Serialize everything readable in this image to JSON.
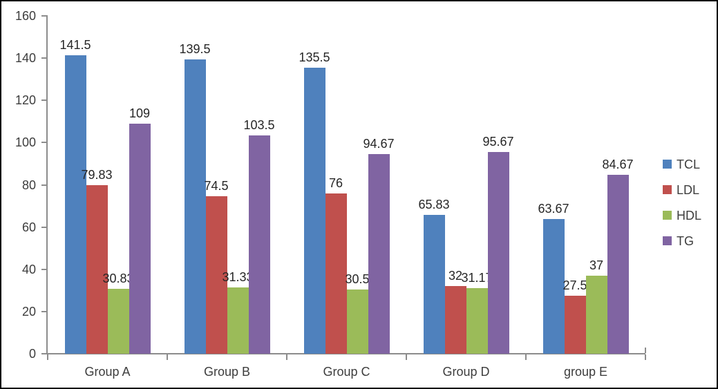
{
  "chart_data": {
    "type": "bar",
    "title": "",
    "xlabel": "",
    "ylabel": "",
    "categories": [
      "Group A",
      "Group B",
      "Group C",
      "Group D",
      "group E"
    ],
    "series": [
      {
        "name": "TCL",
        "color": "#4F81BD",
        "values": [
          141.5,
          139.5,
          135.5,
          65.83,
          63.67
        ]
      },
      {
        "name": "LDL",
        "color": "#C0504D",
        "values": [
          79.83,
          74.5,
          76,
          32,
          27.5
        ]
      },
      {
        "name": "HDL",
        "color": "#9BBB59",
        "values": [
          30.83,
          31.33,
          30.5,
          31.17,
          37
        ]
      },
      {
        "name": "TG",
        "color": "#8064A2",
        "values": [
          109,
          103.5,
          94.67,
          95.67,
          84.67
        ]
      }
    ],
    "ylim": [
      0,
      160
    ],
    "ytick_step": 20,
    "ytick_labels": [
      "0",
      "20",
      "40",
      "60",
      "80",
      "100",
      "120",
      "140",
      "160"
    ],
    "grid": false,
    "data_labels": true,
    "legend_position": "right",
    "axis_color": "#8C8C8C",
    "label_color": "#262626"
  }
}
